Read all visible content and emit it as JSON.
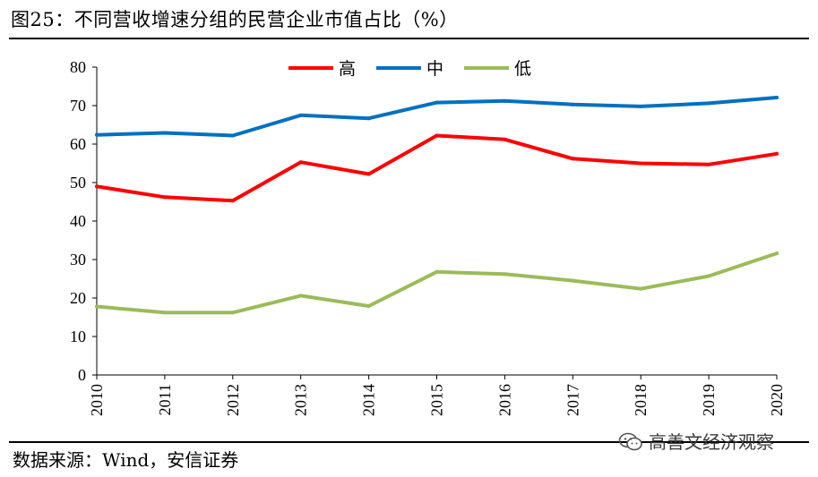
{
  "header": {
    "title": "图25：不同营收增速分组的民营企业市值占比（%）"
  },
  "footer": {
    "source": "数据来源：Wind，安信证券"
  },
  "watermark": {
    "text": "高善文经济观察",
    "icon": "wechat-icon"
  },
  "chart_data": {
    "type": "line",
    "title": "",
    "xlabel": "",
    "ylabel": "",
    "ylim": [
      0,
      80
    ],
    "yticks": [
      0,
      10,
      20,
      30,
      40,
      50,
      60,
      70,
      80
    ],
    "grid": false,
    "legend_position": "top-center",
    "categories": [
      "2010",
      "2011",
      "2012",
      "2013",
      "2014",
      "2015",
      "2016",
      "2017",
      "2018",
      "2019",
      "2020"
    ],
    "series": [
      {
        "name": "高",
        "color": "#ff0000",
        "values": [
          49.0,
          46.2,
          45.3,
          55.3,
          52.2,
          62.2,
          61.2,
          56.2,
          55.0,
          54.7,
          57.5
        ]
      },
      {
        "name": "中",
        "color": "#0070c0",
        "values": [
          62.4,
          62.9,
          62.2,
          67.5,
          66.7,
          70.8,
          71.2,
          70.3,
          69.8,
          70.6,
          72.1
        ]
      },
      {
        "name": "低",
        "color": "#9bbb59",
        "values": [
          17.8,
          16.2,
          16.2,
          20.6,
          17.9,
          26.8,
          26.2,
          24.5,
          22.4,
          25.7,
          31.6
        ]
      }
    ]
  }
}
